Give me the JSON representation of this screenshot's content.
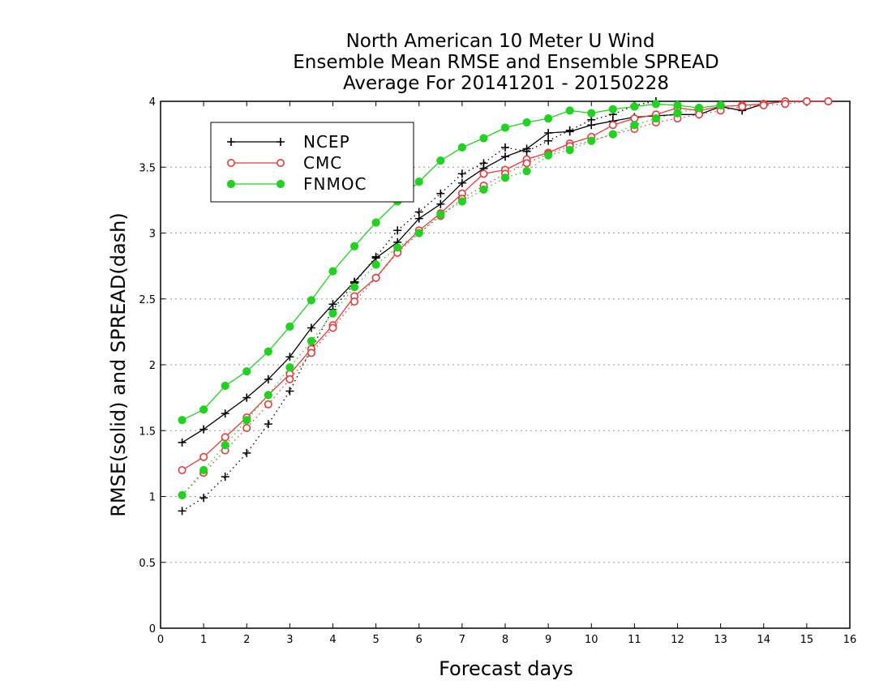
{
  "chart_data": {
    "type": "line",
    "title": [
      "North American 10 Meter U Wind",
      "Ensemble Mean RMSE and Ensemble SPREAD",
      "Average For 20141201 - 20150228"
    ],
    "xlabel": "Forecast days",
    "ylabel": "RMSE(solid) and SPREAD(dash)",
    "xlim": [
      0,
      16
    ],
    "ylim": [
      0,
      4
    ],
    "xticks": [
      "0",
      "1",
      "2",
      "3",
      "4",
      "5",
      "6",
      "7",
      "8",
      "9",
      "10",
      "11",
      "12",
      "13",
      "14",
      "15",
      "16"
    ],
    "yticks": [
      "0",
      "0.5",
      "1",
      "1.5",
      "2",
      "2.5",
      "3",
      "3.5",
      "4"
    ],
    "grid": "horizontal-dotted",
    "legend_position": "top-left",
    "series": [
      {
        "name": "NCEP",
        "metric": "RMSE",
        "style": "solid",
        "marker": "plus",
        "color": "#000000",
        "x": [
          0.5,
          1,
          1.5,
          2,
          2.5,
          3,
          3.5,
          4,
          4.5,
          5,
          5.5,
          6,
          6.5,
          7,
          7.5,
          8,
          8.5,
          9,
          9.5,
          10,
          10.5,
          11,
          11.5,
          12,
          12.5,
          13,
          13.5,
          14,
          14.5,
          15,
          15.5
        ],
        "y": [
          1.41,
          1.51,
          1.63,
          1.75,
          1.89,
          2.06,
          2.28,
          2.46,
          2.63,
          2.81,
          2.93,
          3.11,
          3.22,
          3.38,
          3.49,
          3.58,
          3.64,
          3.76,
          3.77,
          3.82,
          3.85,
          3.88,
          3.89,
          3.9,
          3.9,
          3.96,
          3.93,
          3.98,
          4.0,
          4.0,
          4.0
        ]
      },
      {
        "name": "NCEP",
        "metric": "SPREAD",
        "style": "dot",
        "marker": "plus",
        "color": "#000000",
        "x": [
          0.5,
          1,
          1.5,
          2,
          2.5,
          3,
          3.5,
          4,
          4.5,
          5,
          5.5,
          6,
          6.5,
          7,
          7.5,
          8,
          8.5,
          9,
          9.5,
          10,
          10.5,
          11,
          11.5
        ],
        "y": [
          0.89,
          0.99,
          1.15,
          1.33,
          1.55,
          1.8,
          2.12,
          2.42,
          2.62,
          2.82,
          3.02,
          3.16,
          3.3,
          3.45,
          3.53,
          3.65,
          3.62,
          3.7,
          3.78,
          3.86,
          3.9,
          3.97,
          4.0
        ]
      },
      {
        "name": "CMC",
        "metric": "RMSE",
        "style": "solid",
        "marker": "open-circle",
        "color": "#e83b3b",
        "x": [
          0.5,
          1,
          1.5,
          2,
          2.5,
          3,
          3.5,
          4,
          4.5,
          5,
          5.5,
          6,
          6.5,
          7,
          7.5,
          8,
          8.5,
          9,
          9.5,
          10,
          10.5,
          11,
          11.5,
          12,
          12.5,
          13,
          13.5,
          14,
          14.5,
          15,
          15.5
        ],
        "y": [
          1.2,
          1.3,
          1.45,
          1.6,
          1.77,
          1.93,
          2.12,
          2.3,
          2.52,
          2.66,
          2.86,
          3.02,
          3.15,
          3.3,
          3.45,
          3.48,
          3.56,
          3.61,
          3.68,
          3.73,
          3.82,
          3.87,
          3.9,
          3.95,
          3.93,
          3.96,
          3.97,
          3.98,
          4.0,
          4.0,
          4.0
        ]
      },
      {
        "name": "CMC",
        "metric": "SPREAD",
        "style": "dot",
        "marker": "open-circle",
        "color": "#e83b3b",
        "x": [
          0.5,
          1,
          1.5,
          2,
          2.5,
          3,
          3.5,
          4,
          4.5,
          5,
          5.5,
          6,
          6.5,
          7,
          7.5,
          8,
          8.5,
          9,
          9.5,
          10,
          10.5,
          11,
          11.5,
          12,
          12.5,
          13,
          13.5,
          14,
          14.5,
          15,
          15.5
        ],
        "y": [
          1.01,
          1.18,
          1.35,
          1.52,
          1.7,
          1.89,
          2.09,
          2.28,
          2.48,
          2.66,
          2.85,
          3.0,
          3.13,
          3.26,
          3.36,
          3.45,
          3.53,
          3.6,
          3.66,
          3.7,
          3.75,
          3.79,
          3.84,
          3.87,
          3.9,
          3.93,
          3.96,
          3.97,
          3.98,
          4.0,
          4.0
        ]
      },
      {
        "name": "FNMOC",
        "metric": "RMSE",
        "style": "solid",
        "marker": "filled-circle",
        "color": "#1ed41e",
        "x": [
          0.5,
          1,
          1.5,
          2,
          2.5,
          3,
          3.5,
          4,
          4.5,
          5,
          5.5,
          6,
          6.5,
          7,
          7.5,
          8,
          8.5,
          9,
          9.5,
          10,
          10.5,
          11,
          11.5,
          12,
          12.5,
          13
        ],
        "y": [
          1.58,
          1.66,
          1.84,
          1.95,
          2.1,
          2.29,
          2.49,
          2.71,
          2.9,
          3.08,
          3.24,
          3.39,
          3.55,
          3.65,
          3.72,
          3.8,
          3.84,
          3.87,
          3.93,
          3.91,
          3.94,
          3.96,
          3.98,
          3.97,
          3.95,
          3.97
        ]
      },
      {
        "name": "FNMOC",
        "metric": "SPREAD",
        "style": "dot",
        "marker": "filled-circle",
        "color": "#1ed41e",
        "x": [
          0.5,
          1,
          1.5,
          2,
          2.5,
          3,
          3.5,
          4,
          4.5,
          5,
          5.5,
          6,
          6.5,
          7,
          7.5,
          8,
          8.5,
          9,
          9.5,
          10,
          10.5,
          11,
          11.5,
          12,
          12.5,
          13
        ],
        "y": [
          1.01,
          1.2,
          1.39,
          1.58,
          1.77,
          1.98,
          2.18,
          2.39,
          2.59,
          2.76,
          2.89,
          3.0,
          3.14,
          3.24,
          3.33,
          3.42,
          3.47,
          3.59,
          3.63,
          3.7,
          3.75,
          3.82,
          3.87,
          3.91,
          3.95,
          3.97
        ]
      }
    ],
    "legend": [
      {
        "label": "NCEP",
        "marker": "plus",
        "color": "#000000"
      },
      {
        "label": "CMC",
        "marker": "open-circle",
        "color": "#e83b3b"
      },
      {
        "label": "FNMOC",
        "marker": "filled-circle",
        "color": "#1ed41e"
      }
    ]
  }
}
